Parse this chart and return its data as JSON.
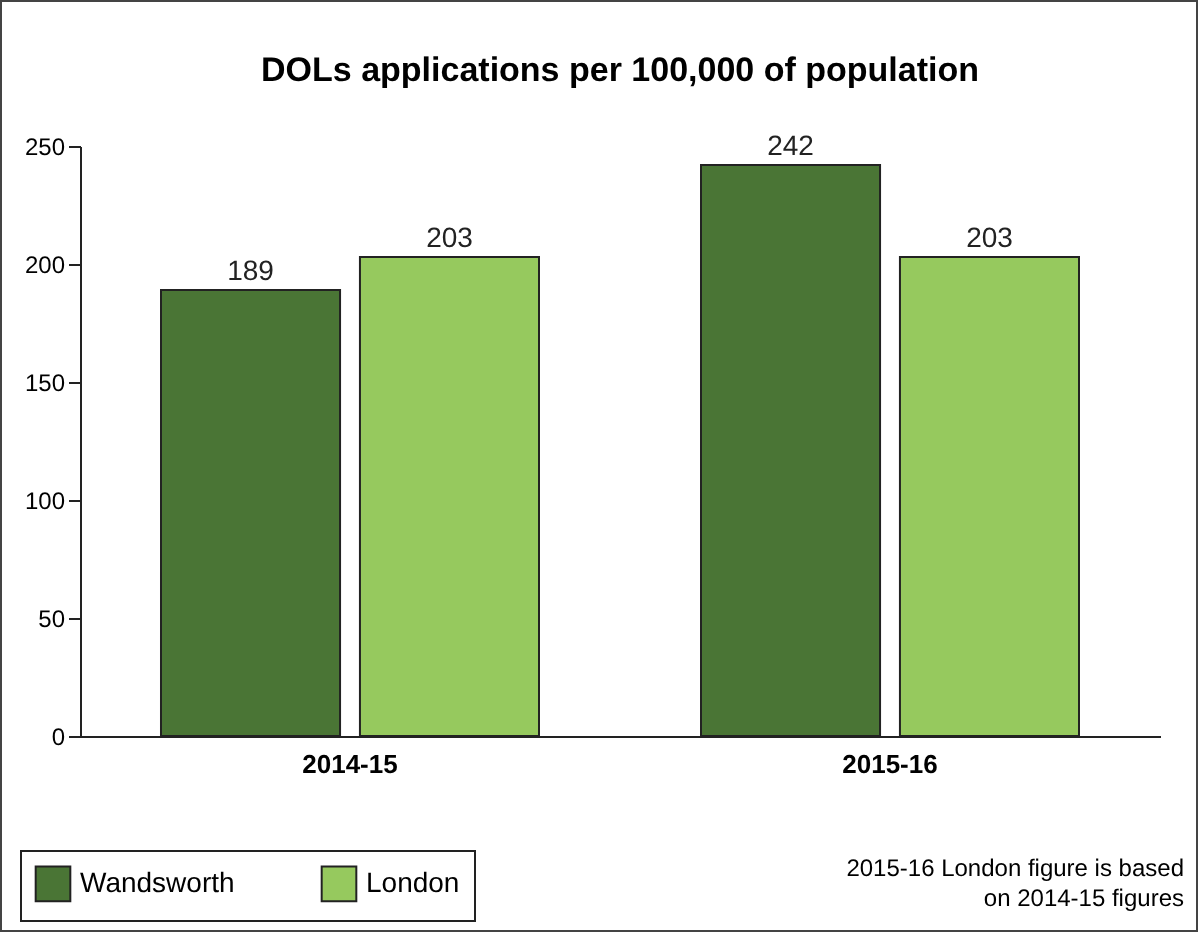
{
  "chart_data": {
    "type": "bar",
    "title": "DOLs applications per 100,000 of population",
    "categories": [
      "2014-15",
      "2015-16"
    ],
    "series": [
      {
        "name": "Wandsworth",
        "color": "#4a7535",
        "values": [
          189,
          242
        ]
      },
      {
        "name": "London",
        "color": "#96c95e",
        "values": [
          203,
          203
        ]
      }
    ],
    "ylim": [
      0,
      250
    ],
    "yticks": [
      0,
      50,
      100,
      150,
      200,
      250
    ],
    "data_labels": true,
    "legend": "bottom left",
    "annotations": [
      "2015-16 London figure is based on 2014-15 figures"
    ]
  }
}
